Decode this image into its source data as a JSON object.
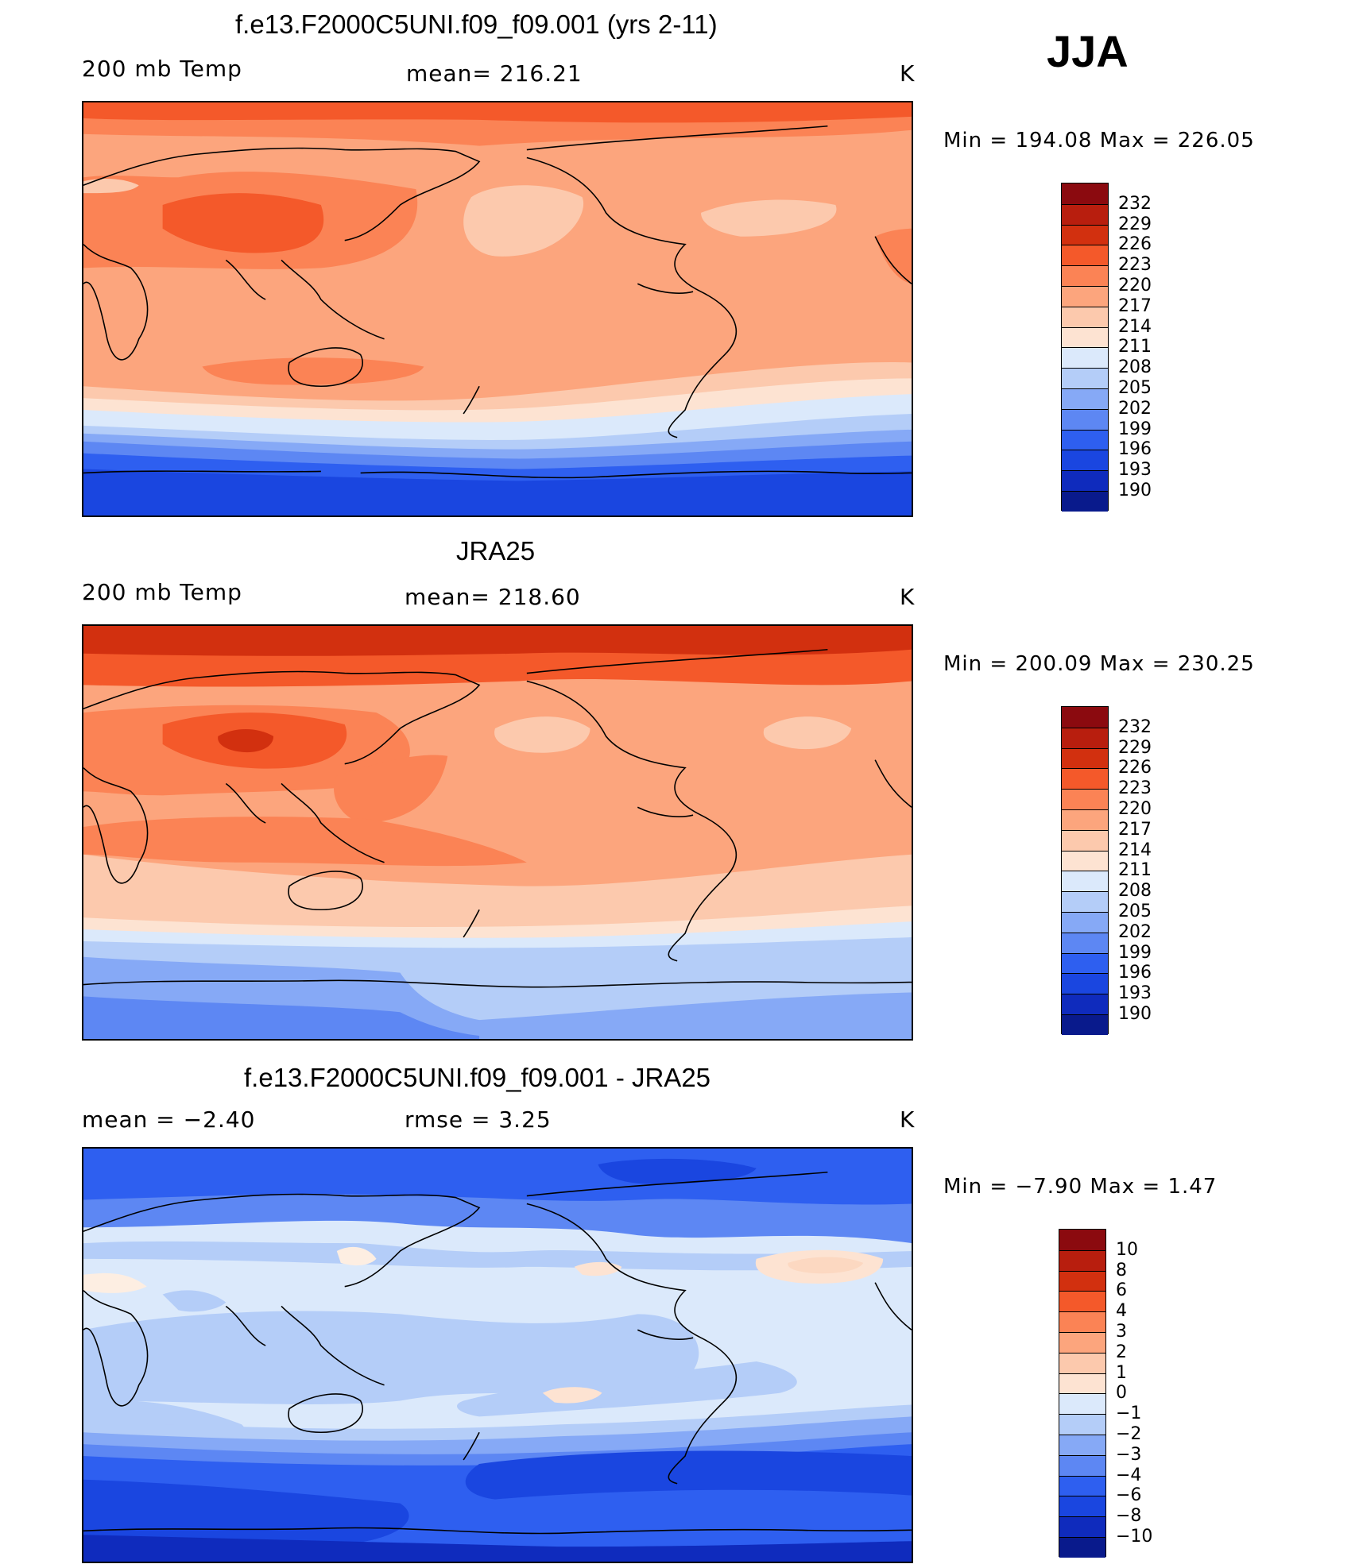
{
  "season": "JJA",
  "panels": [
    {
      "title": "f.e13.F2000C5UNI.f09_f09.001 (yrs 2-11)",
      "left_label": "200 mb Temp",
      "center_label": "mean= 216.21",
      "units": "K",
      "minmax": "Min  =  194.08  Max  =  226.05",
      "colorbar_labels": [
        "232",
        "229",
        "226",
        "223",
        "220",
        "217",
        "214",
        "211",
        "208",
        "205",
        "202",
        "199",
        "196",
        "193",
        "190"
      ],
      "bands": [
        {
          "level": "226",
          "color": "#f4592a",
          "regions": [
            "north-india-china"
          ]
        },
        {
          "level": "223",
          "color": "#fb8355",
          "regions": [
            "subtropics-north",
            "arctic",
            "south-africa-australia-belt"
          ]
        },
        {
          "level": "220",
          "color": "#fca57d",
          "regions": [
            "tropics",
            "midlatitudes-north"
          ]
        },
        {
          "level": "217",
          "color": "#fcc9ad",
          "regions": [
            "north-pacific-high",
            "atlantic-east"
          ]
        },
        {
          "level": "214",
          "color": "#fde3d2",
          "regions": [
            "southern-50s"
          ]
        },
        {
          "level": "211",
          "color": "#dbe9fb",
          "regions": [
            "southern-55s"
          ]
        },
        {
          "level": "208 to 190",
          "color": "#2e5ff0",
          "regions": [
            "southern-ocean",
            "antarctica"
          ]
        }
      ]
    },
    {
      "title": "JRA25",
      "left_label": "200 mb Temp",
      "center_label": "mean= 218.60",
      "units": "K",
      "minmax": "Min  =  200.09  Max  =  230.25",
      "colorbar_labels": [
        "232",
        "229",
        "226",
        "223",
        "220",
        "217",
        "214",
        "211",
        "208",
        "205",
        "202",
        "199",
        "196",
        "193",
        "190"
      ],
      "bands": [
        {
          "level": "229",
          "color": "#d2300f",
          "regions": [
            "arctic-top",
            "tibet"
          ]
        },
        {
          "level": "226",
          "color": "#f4592a",
          "regions": [
            "asia-warm-core",
            "north-60s"
          ]
        },
        {
          "level": "223",
          "color": "#fb8355",
          "regions": [
            "subtropics-north",
            "southern-30s"
          ]
        },
        {
          "level": "220",
          "color": "#fca57d",
          "regions": [
            "tropics"
          ]
        },
        {
          "level": "217",
          "color": "#fcc9ad",
          "regions": [
            "north-pacific-high",
            "north-atlantic-high",
            "southern-45s"
          ]
        },
        {
          "level": "211",
          "color": "#dbe9fb",
          "regions": [
            "southern-60s"
          ]
        },
        {
          "level": "205 to 202",
          "color": "#86a9f6",
          "regions": [
            "antarctica"
          ]
        }
      ]
    },
    {
      "title": "f.e13.F2000C5UNI.f09_f09.001 - JRA25",
      "left_label": "mean  =    −2.40",
      "center_label": "rmse  =     3.25",
      "units": "K",
      "minmax": "Min  =    −7.90  Max  =     1.47",
      "colorbar_labels": [
        "10",
        "8",
        "6",
        "4",
        "3",
        "2",
        "1",
        "0",
        "−1",
        "−2",
        "−3",
        "−4",
        "−6",
        "−8",
        "−10"
      ],
      "bands": [
        {
          "level": "1",
          "color": "#fcd8c1",
          "regions": [
            "north-atlantic",
            "south-pacific-small"
          ]
        },
        {
          "level": "0",
          "color": "#fdeee2",
          "regions": [
            "mediterranean",
            "east-asia"
          ]
        },
        {
          "level": "−1",
          "color": "#dbe9fb",
          "regions": [
            "tropics"
          ]
        },
        {
          "level": "−2",
          "color": "#b4cdf8",
          "regions": [
            "africa-indian-ocean",
            "south-pacific"
          ]
        },
        {
          "level": "−3 to −4",
          "color": "#5d87f3",
          "regions": [
            "north-60s",
            "southern-45s"
          ]
        },
        {
          "level": "−6 to −8",
          "color": "#1f4ee6",
          "regions": [
            "arctic",
            "southern-ocean"
          ]
        }
      ]
    }
  ],
  "colors": {
    "scale": [
      "#8b0a0f",
      "#b81e0e",
      "#d2300f",
      "#f4592a",
      "#fb8355",
      "#fca57d",
      "#fcc9ad",
      "#fde3d2",
      "#dbe9fb",
      "#b4cdf8",
      "#86a9f6",
      "#5d87f3",
      "#2e5ff0",
      "#1a46e0",
      "#0f2bbd",
      "#091a8c"
    ]
  }
}
